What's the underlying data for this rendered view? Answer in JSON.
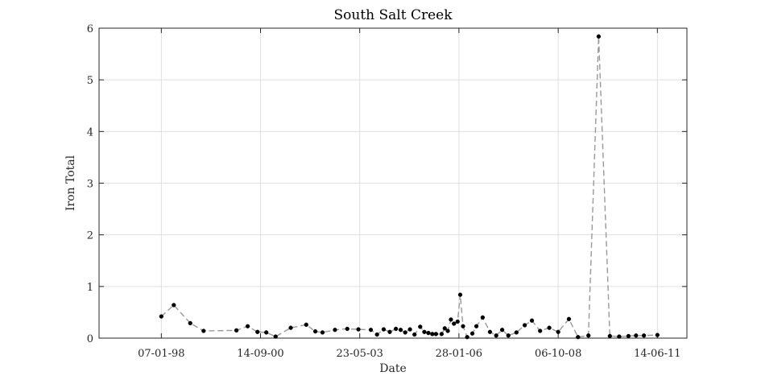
{
  "chart_data": {
    "type": "line",
    "title": "South Salt Creek",
    "xlabel": "Date",
    "ylabel": "Iron Total",
    "x_type": "date",
    "xlim": [
      "1996-05-01",
      "2012-04-01"
    ],
    "ylim": [
      0,
      6
    ],
    "x_ticks": [
      "1998-01-07",
      "2000-09-14",
      "2003-05-23",
      "2006-01-28",
      "2008-10-06",
      "2011-06-14"
    ],
    "x_tick_labels": [
      "07-01-98",
      "14-09-00",
      "23-05-03",
      "28-01-06",
      "06-10-08",
      "14-06-11"
    ],
    "y_ticks": [
      0,
      1,
      2,
      3,
      4,
      5,
      6
    ],
    "y_tick_labels": [
      "0",
      "1",
      "2",
      "3",
      "4",
      "5",
      "6"
    ],
    "grid": true,
    "line_style": "dashed",
    "colors": {
      "line": "#999999",
      "marker": "#000000",
      "grid": "#dfdfdf",
      "axis": "#262626"
    },
    "series": [
      {
        "x": [
          "1998-01-07",
          "1998-05-10",
          "1998-10-20",
          "1999-03-01",
          "2000-01-20",
          "2000-05-10",
          "2000-08-15",
          "2000-11-10",
          "2001-02-10",
          "2001-07-10",
          "2001-12-10",
          "2002-03-10",
          "2002-05-20",
          "2002-09-20",
          "2003-01-20",
          "2003-05-10",
          "2003-09-10",
          "2003-11-10",
          "2004-01-15",
          "2004-03-15",
          "2004-05-15",
          "2004-07-01",
          "2004-08-15",
          "2004-10-01",
          "2004-11-15",
          "2005-01-10",
          "2005-02-20",
          "2005-04-01",
          "2005-05-10",
          "2005-06-15",
          "2005-08-10",
          "2005-09-10",
          "2005-10-10",
          "2005-11-10",
          "2005-12-10",
          "2006-01-15",
          "2006-02-10",
          "2006-03-10",
          "2006-04-20",
          "2006-06-10",
          "2006-07-20",
          "2006-09-20",
          "2006-12-01",
          "2007-02-01",
          "2007-04-01",
          "2007-06-01",
          "2007-08-20",
          "2007-11-10",
          "2008-01-20",
          "2008-04-10",
          "2008-07-10",
          "2008-10-06",
          "2009-01-20",
          "2009-04-20",
          "2009-08-01",
          "2009-11-10",
          "2010-03-01",
          "2010-06-01",
          "2010-09-01",
          "2010-11-15",
          "2011-02-01",
          "2011-06-14"
        ],
        "y": [
          0.42,
          0.64,
          0.29,
          0.14,
          0.15,
          0.23,
          0.12,
          0.11,
          0.03,
          0.2,
          0.26,
          0.13,
          0.11,
          0.16,
          0.18,
          0.17,
          0.16,
          0.07,
          0.17,
          0.12,
          0.18,
          0.16,
          0.11,
          0.17,
          0.07,
          0.22,
          0.12,
          0.1,
          0.08,
          0.08,
          0.08,
          0.19,
          0.14,
          0.36,
          0.28,
          0.32,
          0.84,
          0.23,
          0.02,
          0.09,
          0.23,
          0.4,
          0.12,
          0.05,
          0.16,
          0.05,
          0.11,
          0.25,
          0.34,
          0.14,
          0.2,
          0.12,
          0.37,
          0.02,
          0.05,
          5.84,
          0.04,
          0.03,
          0.04,
          0.05,
          0.05,
          0.06
        ]
      }
    ]
  }
}
